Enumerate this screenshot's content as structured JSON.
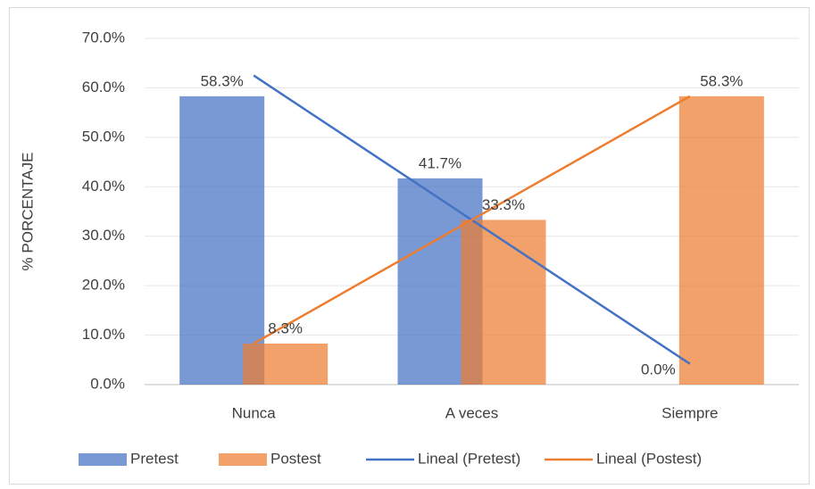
{
  "chart_data": {
    "type": "bar",
    "y_label": "% PORCENTAJE",
    "categories": [
      "Nunca",
      "A veces",
      "Siempre"
    ],
    "series": [
      {
        "name": "Pretest",
        "color": "#4472c4",
        "values": [
          58.3,
          41.7,
          0
        ],
        "value_labels": [
          "58.3%",
          "41.7%",
          "0.0%"
        ]
      },
      {
        "name": "Postest",
        "color": "#ed7d31",
        "values": [
          8.3,
          33.3,
          58.3
        ],
        "value_labels": [
          "8.3%",
          "33.3%",
          "58.3%"
        ]
      }
    ],
    "trendlines": [
      {
        "name": "Lineal (Pretest)",
        "color": "#4472c4",
        "values": [
          62.5,
          33.3,
          4.2
        ]
      },
      {
        "name": "Lineal (Postest)",
        "color": "#ed7d31",
        "values": [
          8.3,
          33.3,
          58.3
        ]
      }
    ],
    "ylim": [
      0,
      70
    ],
    "yticks": [
      {
        "value": 0,
        "label": "0.0%"
      },
      {
        "value": 10,
        "label": "10.0%"
      },
      {
        "value": 20,
        "label": "20.0%"
      },
      {
        "value": 30,
        "label": "30.0%"
      },
      {
        "value": 40,
        "label": "40.0%"
      },
      {
        "value": 50,
        "label": "50.0%"
      },
      {
        "value": 60,
        "label": "60.0%"
      },
      {
        "value": 70,
        "label": "70.0%"
      }
    ],
    "grid": true
  }
}
